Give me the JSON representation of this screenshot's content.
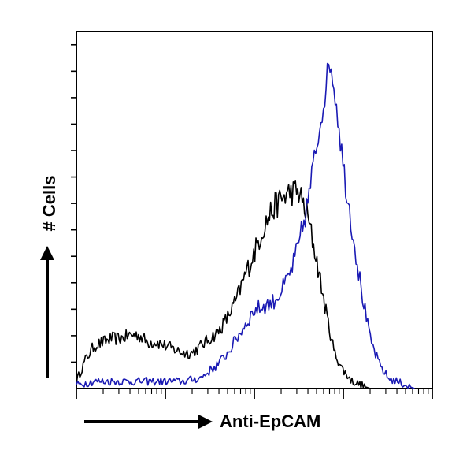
{
  "chart_data": {
    "type": "histogram",
    "title": "",
    "xlabel": "Anti-EpCAM",
    "ylabel": "# Cells",
    "x_scale": "log",
    "x_range_decades": [
      0,
      4
    ],
    "y_range": [
      0,
      100
    ],
    "tick_labels_printed": false,
    "grid": false,
    "legend": "none",
    "series": [
      {
        "color": "#000000",
        "points": [
          [
            0.0,
            2
          ],
          [
            0.05,
            5
          ],
          [
            0.1,
            8
          ],
          [
            0.2,
            12
          ],
          [
            0.3,
            13
          ],
          [
            0.4,
            14
          ],
          [
            0.5,
            14
          ],
          [
            0.6,
            15
          ],
          [
            0.7,
            15
          ],
          [
            0.8,
            13
          ],
          [
            0.9,
            13
          ],
          [
            1.0,
            12
          ],
          [
            1.1,
            11
          ],
          [
            1.2,
            10
          ],
          [
            1.3,
            10
          ],
          [
            1.4,
            12
          ],
          [
            1.5,
            14
          ],
          [
            1.6,
            16
          ],
          [
            1.7,
            20
          ],
          [
            1.8,
            25
          ],
          [
            1.9,
            32
          ],
          [
            2.0,
            38
          ],
          [
            2.1,
            45
          ],
          [
            2.2,
            50
          ],
          [
            2.3,
            53
          ],
          [
            2.4,
            55
          ],
          [
            2.5,
            55
          ],
          [
            2.6,
            48
          ],
          [
            2.7,
            36
          ],
          [
            2.8,
            22
          ],
          [
            2.9,
            10
          ],
          [
            3.0,
            5
          ],
          [
            3.1,
            2
          ],
          [
            3.2,
            1
          ],
          [
            3.3,
            0
          ]
        ]
      },
      {
        "color": "#1a1ab4",
        "points": [
          [
            0.0,
            1
          ],
          [
            0.2,
            2
          ],
          [
            0.4,
            2
          ],
          [
            0.6,
            2
          ],
          [
            0.8,
            2
          ],
          [
            1.0,
            2
          ],
          [
            1.2,
            2
          ],
          [
            1.4,
            3
          ],
          [
            1.5,
            5
          ],
          [
            1.6,
            7
          ],
          [
            1.7,
            10
          ],
          [
            1.8,
            14
          ],
          [
            1.9,
            18
          ],
          [
            2.0,
            22
          ],
          [
            2.1,
            23
          ],
          [
            2.2,
            24
          ],
          [
            2.3,
            27
          ],
          [
            2.4,
            32
          ],
          [
            2.5,
            40
          ],
          [
            2.6,
            52
          ],
          [
            2.7,
            68
          ],
          [
            2.8,
            84
          ],
          [
            2.85,
            92
          ],
          [
            2.9,
            84
          ],
          [
            2.95,
            74
          ],
          [
            3.0,
            62
          ],
          [
            3.1,
            45
          ],
          [
            3.2,
            28
          ],
          [
            3.3,
            14
          ],
          [
            3.4,
            7
          ],
          [
            3.5,
            3
          ],
          [
            3.6,
            2
          ],
          [
            3.7,
            1
          ],
          [
            3.8,
            0
          ]
        ]
      }
    ]
  }
}
